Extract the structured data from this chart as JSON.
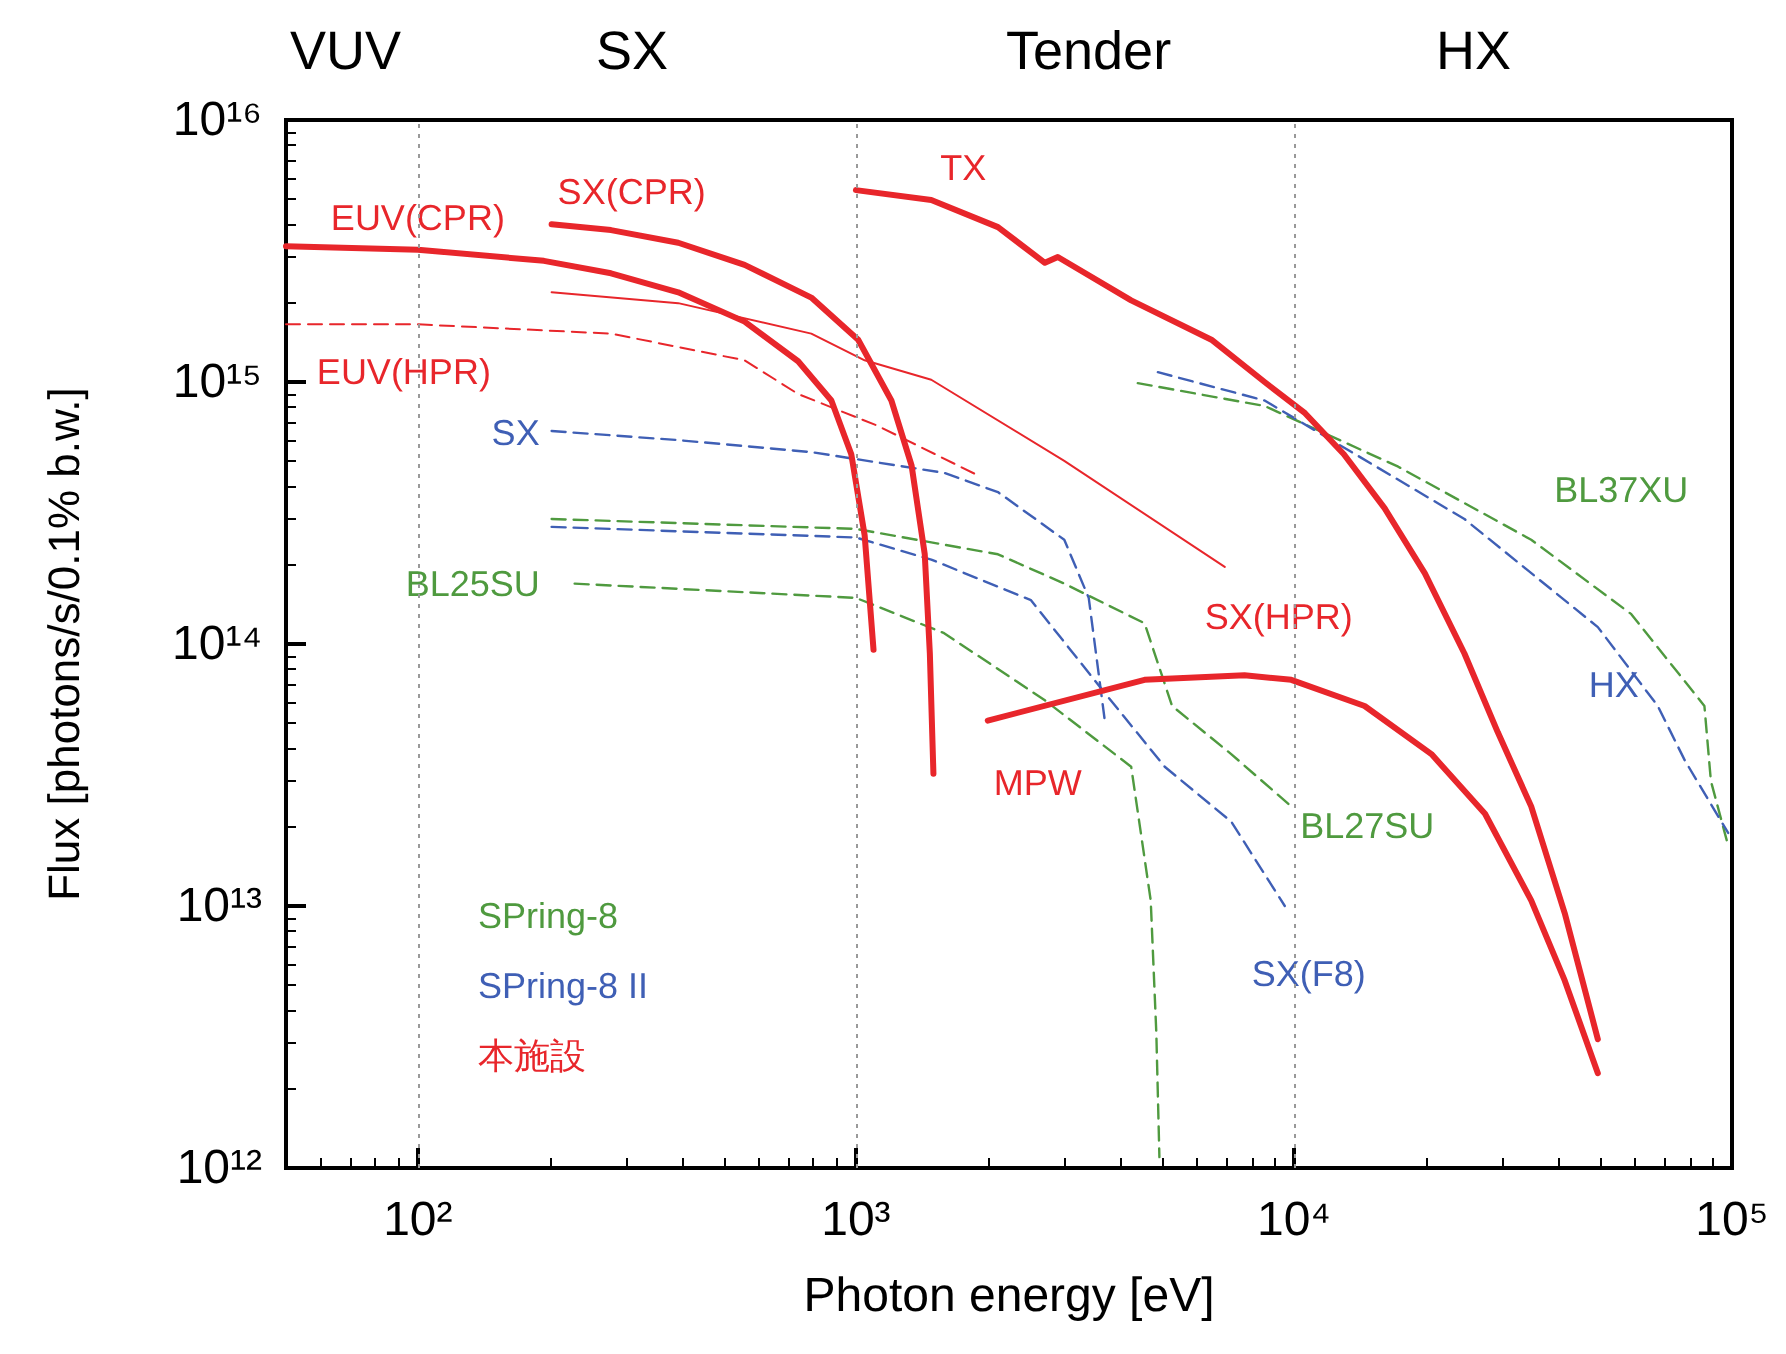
{
  "chart_data": {
    "type": "line",
    "xlabel": "Photon energy [eV]",
    "ylabel": "Flux [photons/s/0.1% b.w.]",
    "log": "xy",
    "legend": false,
    "grid": false,
    "marker": "none",
    "xlim": [
      50,
      100000
    ],
    "xticks": [
      {
        "value": 100,
        "label": "10²"
      },
      {
        "value": 1000,
        "label": "10³"
      },
      {
        "value": 10000,
        "label": "10⁴"
      },
      {
        "value": 100000,
        "label": "10⁵"
      }
    ],
    "ylim": [
      1000000000000.0,
      1e+16
    ],
    "yticks": [
      {
        "value": 1000000000000.0,
        "label": "10¹²"
      },
      {
        "value": 10000000000000.0,
        "label": "10¹³"
      },
      {
        "value": 100000000000000.0,
        "label": "10¹⁴"
      },
      {
        "value": 1000000000000000.0,
        "label": "10¹⁵"
      },
      {
        "value": 1e+16,
        "label": "10¹⁶"
      }
    ],
    "ref_lines": [
      {
        "axis": "x",
        "value": 100,
        "color": "#999999",
        "line_style": "dotted"
      },
      {
        "axis": "x",
        "value": 1000,
        "color": "#999999",
        "line_style": "dotted"
      },
      {
        "axis": "x",
        "value": 10000,
        "color": "#999999",
        "line_style": "dotted"
      }
    ],
    "annotations": [
      "VUV",
      "SX",
      "Tender",
      "HX",
      "SPring-8",
      "SPring-8 II",
      "本施設"
    ],
    "series": [
      {
        "name": "BL25SU",
        "color": "#4f9a3f",
        "line_style": "dashed",
        "x": [
          228,
          1000,
          1590,
          2700,
          4250,
          4710,
          4850,
          4930
        ],
        "values": [
          170000000000000.0,
          150000000000000.0,
          110000000000000.0,
          61000000000000.0,
          34000000000000.0,
          10500000000000.0,
          3300000000000.0,
          1100000000000.0
        ]
      },
      {
        "name": "BL27SU",
        "color": "#4f9a3f",
        "line_style": "dashed",
        "x": [
          202,
          1000,
          2110,
          2990,
          4560,
          5270,
          7190,
          9860
        ],
        "values": [
          300000000000000.0,
          275000000000000.0,
          220000000000000.0,
          170000000000000.0,
          120000000000000.0,
          58000000000000.0,
          38000000000000.0,
          24000000000000.0
        ]
      },
      {
        "name": "BL37XU",
        "color": "#4f9a3f",
        "line_style": "dashed",
        "x": [
          4400,
          8570,
          17300,
          34800,
          58900,
          86500,
          89500,
          98000
        ],
        "values": [
          990000000000000.0,
          810000000000000.0,
          475000000000000.0,
          250000000000000.0,
          130000000000000.0,
          58000000000000.0,
          30000000000000.0,
          17000000000000.0
        ]
      },
      {
        "name": "SX",
        "color": "#3f5fb5",
        "line_style": "dashed",
        "x": [
          202,
          393,
          791,
          1590,
          2110,
          2990,
          3400,
          3700
        ],
        "values": [
          650000000000000.0,
          600000000000000.0,
          540000000000000.0,
          450000000000000.0,
          380000000000000.0,
          250000000000000.0,
          150000000000000.0,
          51000000000000.0
        ]
      },
      {
        "name": "SX(F8)",
        "color": "#3f5fb5",
        "line_style": "dashed",
        "x": [
          202,
          1000,
          1486,
          2510,
          3570,
          5070,
          7190,
          9530
        ],
        "values": [
          280000000000000.0,
          255000000000000.0,
          210000000000000.0,
          147000000000000.0,
          70000000000000.0,
          34000000000000.0,
          21000000000000.0,
          10000000000000.0
        ]
      },
      {
        "name": "HX",
        "color": "#3f5fb5",
        "line_style": "dashed",
        "x": [
          4890,
          8570,
          24500,
          49400,
          67700,
          78000,
          98000
        ],
        "values": [
          1090000000000000.0,
          850000000000000.0,
          300000000000000.0,
          116000000000000.0,
          58000000000000.0,
          36000000000000.0,
          19000000000000.0
        ]
      },
      {
        "name": "EUV(CPR)",
        "color": "#e8262b",
        "line_style": "solid",
        "x": [
          50,
          100,
          194,
          276,
          393,
          557,
          738,
          879,
          976,
          1047,
          1097
        ],
        "values": [
          3300000000000000.0,
          3200000000000000.0,
          2900000000000000.0,
          2600000000000000.0,
          2200000000000000.0,
          1700000000000000.0,
          1200000000000000.0,
          850000000000000.0,
          530000000000000.0,
          260000000000000.0,
          95000000000000.0
        ]
      },
      {
        "name": "SX(CPR)",
        "color": "#e8262b",
        "line_style": "solid",
        "x": [
          202,
          276,
          393,
          557,
          791,
          1012,
          1205,
          1340,
          1436,
          1475,
          1503
        ],
        "values": [
          4000000000000000.0,
          3800000000000000.0,
          3400000000000000.0,
          2800000000000000.0,
          2100000000000000.0,
          1450000000000000.0,
          850000000000000.0,
          480000000000000.0,
          220000000000000.0,
          92000000000000.0,
          32000000000000.0
        ]
      },
      {
        "name": "TX",
        "color": "#e8262b",
        "line_style": "solid",
        "x": [
          1000,
          1486,
          2110,
          2700,
          2890,
          4250,
          6480,
          8570,
          10600,
          13000,
          16100,
          19900,
          24500,
          29200,
          34800,
          41500,
          49400
        ],
        "values": [
          5400000000000000.0,
          4950000000000000.0,
          3900000000000000.0,
          2850000000000000.0,
          3000000000000000.0,
          2050000000000000.0,
          1450000000000000.0,
          1000000000000000.0,
          760000000000000.0,
          530000000000000.0,
          330000000000000.0,
          186000000000000.0,
          92000000000000.0,
          46000000000000.0,
          24000000000000.0,
          9400000000000.0,
          3100000000000.0
        ]
      },
      {
        "name": "MPW",
        "color": "#e8262b",
        "line_style": "solid",
        "x": [
          2000,
          4560,
          7710,
          9860,
          14500,
          20600,
          27300,
          34800,
          41500,
          49400
        ],
        "values": [
          51000000000000.0,
          73000000000000.0,
          76000000000000.0,
          73000000000000.0,
          58000000000000.0,
          38000000000000.0,
          22500000000000.0,
          10500000000000.0,
          5200000000000.0,
          2300000000000.0
        ]
      },
      {
        "name": "SX(HPR)",
        "color": "#e8262b",
        "line_style": "solid",
        "x": [
          202,
          393,
          791,
          1047,
          1486,
          2990,
          6950
        ],
        "values": [
          2200000000000000.0,
          2000000000000000.0,
          1530000000000000.0,
          1210000000000000.0,
          1020000000000000.0,
          500000000000000.0,
          197000000000000.0
        ]
      },
      {
        "name": "EUV(HPR)",
        "color": "#e8262b",
        "line_style": "dashed",
        "x": [
          50,
          100,
          276,
          557,
          738,
          1122,
          1900
        ],
        "values": [
          1660000000000000.0,
          1660000000000000.0,
          1530000000000000.0,
          1210000000000000.0,
          900000000000000.0,
          680000000000000.0,
          440000000000000.0
        ]
      }
    ]
  }
}
